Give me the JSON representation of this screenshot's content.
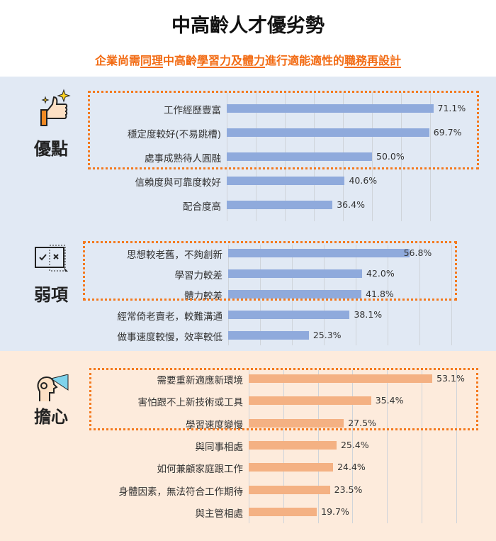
{
  "title": "中高齡人才優劣勢",
  "subtitle_parts": [
    {
      "t": "企業尚需",
      "u": false
    },
    {
      "t": "同理",
      "u": true
    },
    {
      "t": "中高齡",
      "u": false
    },
    {
      "t": "學習力及體力",
      "u": true
    },
    {
      "t": "進行適能適性的",
      "u": false
    },
    {
      "t": "職務再設計",
      "u": true
    }
  ],
  "colors": {
    "blue_bar": "#8faadc",
    "orange_bar": "#f4b183",
    "highlight": "#f47a1f",
    "blue_bg": "#e1e9f4",
    "orange_bg": "#fdebdc"
  },
  "chart_data": [
    {
      "type": "bar",
      "orientation": "horizontal",
      "section": "優點",
      "icon": "thumbs-up-sparkle-icon",
      "highlighted": 3,
      "categories": [
        "工作經歷豐富",
        "穩定度較好(不易跳槽)",
        "處事成熟待人圓融",
        "信賴度與可靠度較好",
        "配合度高"
      ],
      "values": [
        71.1,
        69.7,
        50.0,
        40.6,
        36.4
      ],
      "labels": [
        "71.1%",
        "69.7%",
        "50.0%",
        "40.6%",
        "36.4%"
      ]
    },
    {
      "type": "bar",
      "orientation": "horizontal",
      "section": "弱項",
      "icon": "checkbox-compare-icon",
      "highlighted": 3,
      "categories": [
        "思想較老舊，不夠創新",
        "學習力較差",
        "體力較差",
        "經常倚老賣老，較難溝通",
        "做事速度較慢，效率較低"
      ],
      "values": [
        56.8,
        42.0,
        41.8,
        38.1,
        25.3
      ],
      "labels": [
        "56.8%",
        "42.0%",
        "41.8%",
        "38.1%",
        "25.3%"
      ]
    },
    {
      "type": "bar",
      "orientation": "horizontal",
      "section": "擔心",
      "icon": "head-vision-icon",
      "highlighted": 3,
      "categories": [
        "需要重新適應新環境",
        "害怕跟不上新技術或工具",
        "學習速度變慢",
        "與同事相處",
        "如何兼顧家庭跟工作",
        "身體因素，無法符合工作期待",
        "與主管相處"
      ],
      "values": [
        53.1,
        35.4,
        27.5,
        25.4,
        24.4,
        23.5,
        19.7
      ],
      "labels": [
        "53.1%",
        "35.4%",
        "27.5%",
        "25.4%",
        "24.4%",
        "23.5%",
        "19.7%"
      ]
    }
  ]
}
